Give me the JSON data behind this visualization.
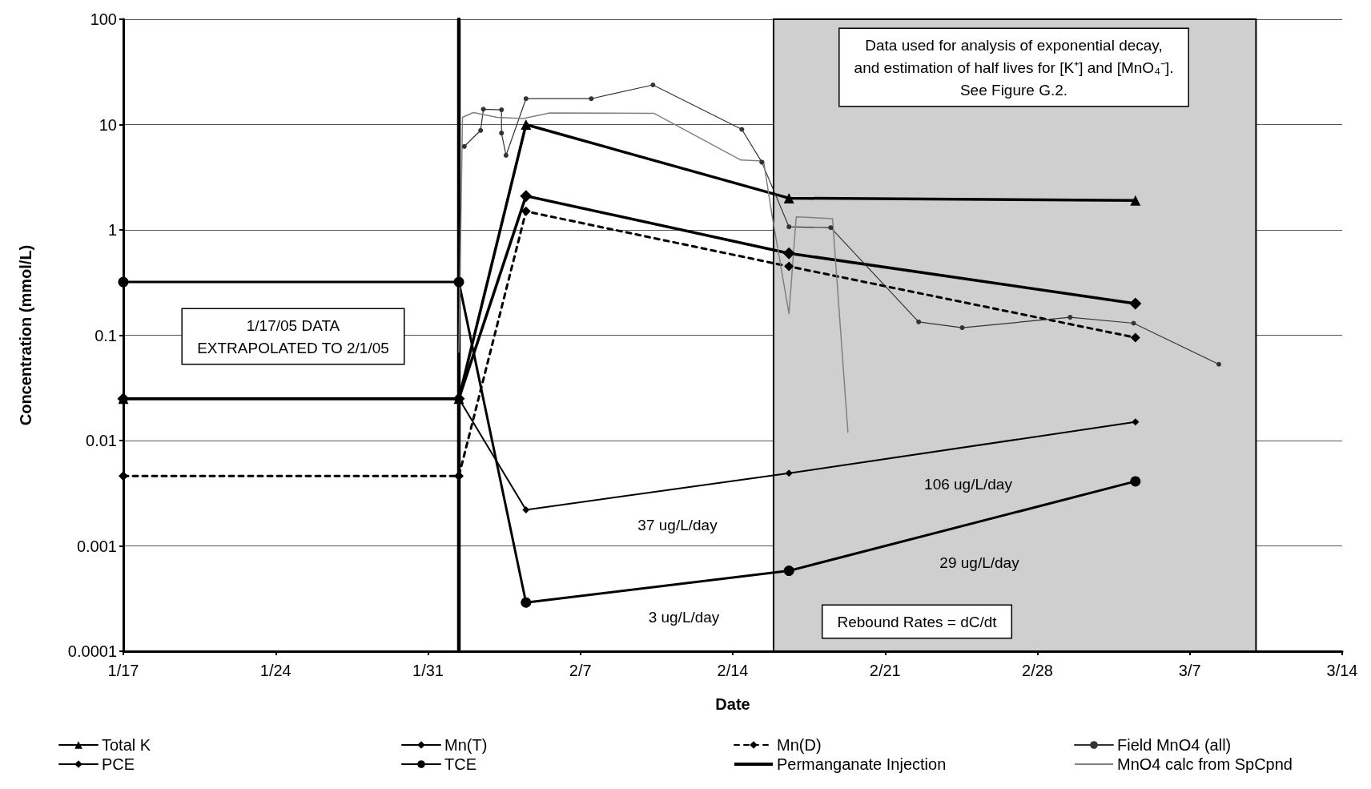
{
  "chart_data": {
    "type": "line",
    "xlabel": "Date",
    "ylabel": "Concentration (mmol/L)",
    "xlim": [
      "--01-17",
      "--03-14"
    ],
    "xticks": [
      {
        "value": "--01-17",
        "label": "1/17"
      },
      {
        "value": "--01-24",
        "label": "1/24"
      },
      {
        "value": "--01-31",
        "label": "1/31"
      },
      {
        "value": "--02-07",
        "label": "2/7"
      },
      {
        "value": "--02-14",
        "label": "2/14"
      },
      {
        "value": "--02-21",
        "label": "2/21"
      },
      {
        "value": "--02-28",
        "label": "2/28"
      },
      {
        "value": "--03-07",
        "label": "3/7"
      },
      {
        "value": "--03-14",
        "label": "3/14"
      }
    ],
    "ylim": [
      0.0001,
      100
    ],
    "yticks": [
      0.0001,
      0.001,
      0.01,
      0.1,
      1,
      10,
      100
    ],
    "log": "y",
    "grid": "y",
    "legend": "bottom",
    "series": [
      {
        "name": "Total K",
        "color": "#000000",
        "marker": "triangle",
        "line_style": "solid",
        "x": [
          "--01-17",
          "--02-01T10:00",
          "--02-04T12:00",
          "--02-16T14:00",
          "--03-04T12:00"
        ],
        "values": [
          0.025,
          0.025,
          10,
          2.0,
          1.9
        ]
      },
      {
        "name": "Mn(T)",
        "color": "#000000",
        "marker": "diamond",
        "line_style": "solid",
        "x": [
          "--01-17",
          "--02-01T10:00",
          "--02-04T12:00",
          "--02-16T14:00",
          "--03-04T12:00"
        ],
        "values": [
          0.025,
          0.025,
          2.1,
          0.6,
          0.2
        ]
      },
      {
        "name": "Mn(D)",
        "color": "#000000",
        "marker": "diamond",
        "line_style": "dashed",
        "x": [
          "--01-17",
          "--02-01T10:00",
          "--02-04T12:00",
          "--02-16T14:00",
          "--03-04T12:00"
        ],
        "values": [
          0.0046,
          0.0046,
          1.5,
          0.45,
          0.095
        ]
      },
      {
        "name": "Field MnO4 (all)",
        "color": "#333333",
        "marker": "circle",
        "line_style": "solid",
        "x": [
          "--02-01T16:00",
          "--02-02T10:00",
          "--02-02T13:00",
          "--02-03T09:00",
          "--02-03T09:00",
          "--02-03T14:00",
          "--02-04T12:00",
          "--02-07T12:00",
          "--02-10T08:00",
          "--02-14T10:00",
          "--02-15T08:00",
          "--02-16T14:00",
          "--02-18T12:00",
          "--02-22T13:00",
          "--02-24T13:00",
          "--03-01T12:00",
          "--03-04T10:00",
          "--03-08T08:00"
        ],
        "values": [
          6.2,
          8.8,
          14,
          13.8,
          8.3,
          5.1,
          17.6,
          17.6,
          23.8,
          9.0,
          4.4,
          1.07,
          1.05,
          0.134,
          0.118,
          0.148,
          0.13,
          0.053
        ]
      },
      {
        "name": "PCE",
        "color": "#000000",
        "marker": "diamond",
        "line_style": "solid",
        "x": [
          "--01-17",
          "--02-01T10:00",
          "--02-04T12:00",
          "--02-16T14:00",
          "--03-04T12:00"
        ],
        "values": [
          0.025,
          0.025,
          0.0022,
          0.0049,
          0.015
        ]
      },
      {
        "name": "TCE",
        "color": "#000000",
        "marker": "circle",
        "line_style": "solid",
        "x": [
          "--01-17",
          "--02-01T10:00",
          "--02-04T12:00",
          "--02-16T14:00",
          "--03-04T12:00"
        ],
        "values": [
          0.32,
          0.32,
          0.00029,
          0.00058,
          0.0041
        ]
      },
      {
        "name": "Permanganate Injection",
        "color": "#000000",
        "marker": "none",
        "line_style": "solid",
        "x": [
          "--02-01T10:00",
          "--02-01T10:00"
        ],
        "values": [
          0.0001,
          100
        ]
      },
      {
        "name": "MnO4 calc from SpCpnd",
        "color": "#808080",
        "marker": "none",
        "line_style": "solid",
        "x": [
          "--02-01T10:00",
          "--02-01T14:00",
          "--02-02T02:00",
          "--02-03T04:00",
          "--02-04T09:00",
          "--02-05T14:00",
          "--02-10T09:00",
          "--02-14T09:00",
          "--02-15T10:00",
          "--02-15T19:00",
          "--02-16T14:00",
          "--02-16T22:00",
          "--02-18T14:00",
          "--02-19T07:00"
        ],
        "values": [
          0.069,
          11.7,
          13,
          11.7,
          11.4,
          12.9,
          12.8,
          4.6,
          4.5,
          1.43,
          0.16,
          1.33,
          1.28,
          0.012
        ]
      }
    ],
    "bands": [
      {
        "axis": "x",
        "from": "--02-15T21:00",
        "to": "--03-10T01:00",
        "color": "#cfcfcf"
      }
    ],
    "annotations": [
      "Data used for analysis of exponential decay,\nand estimation of half lives for [K⁺] and [MnO₄⁻].\nSee Figure G.2.",
      "1/17/05 DATA\nEXTRAPOLATED TO 2/1/05",
      "Rebound Rates = dC/dt",
      "37 ug/L/day",
      "106 ug/L/day",
      "29 ug/L/day",
      "3 ug/L/day"
    ]
  }
}
